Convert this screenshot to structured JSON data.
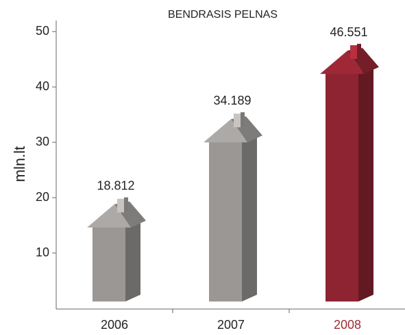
{
  "chart_data": {
    "type": "bar",
    "title": "BENDRASIS PELNAS",
    "y_label": "mln.lt",
    "categories": [
      "2006",
      "2007",
      "2008"
    ],
    "values": [
      18.812,
      34.189,
      46.551
    ],
    "colors": [
      "#9a9795",
      "#9a9795",
      "#8e2431"
    ],
    "label_colors": [
      "#222222",
      "#222222",
      "#9e2a36"
    ],
    "ylim": [
      0,
      52
    ],
    "yticks": [
      10,
      20,
      30,
      40,
      50
    ]
  }
}
